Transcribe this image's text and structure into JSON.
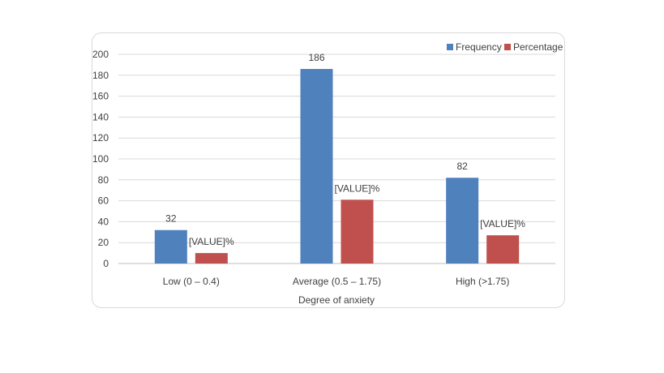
{
  "chart_data": {
    "type": "bar",
    "title": "",
    "xlabel": "Degree  of anxiety",
    "ylabel": "",
    "ylim": [
      0,
      200
    ],
    "yticks": [
      0,
      20,
      40,
      60,
      80,
      100,
      120,
      140,
      160,
      180,
      200
    ],
    "grid": true,
    "legend_position": "top-right",
    "categories": [
      "Low (0 – 0.4)",
      "Average (0.5 – 1.75)",
      "High (>1.75)"
    ],
    "series": [
      {
        "name": "Frequency",
        "color": "#4f81bd",
        "values": [
          32,
          186,
          82
        ],
        "labels": [
          "32",
          "186",
          "82"
        ]
      },
      {
        "name": "Percentage",
        "color": "#c0504d",
        "values": [
          10,
          61,
          27
        ],
        "labels": [
          "[VALUE]%",
          "[VALUE]%",
          "[VALUE]%"
        ]
      }
    ]
  }
}
